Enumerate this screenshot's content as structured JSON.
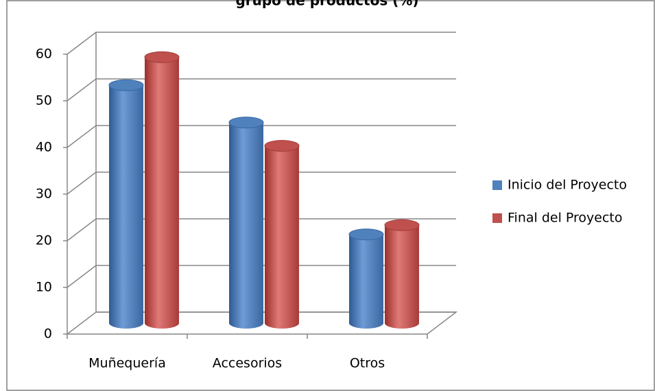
{
  "chart_data": {
    "type": "bar3d",
    "title": "grupo de productos (%)",
    "categories": [
      "Muñequería",
      "Accesorios",
      "Otros"
    ],
    "series": [
      {
        "name": "Inicio del Proyecto",
        "color": "#4f81bd",
        "values": [
          51,
          43,
          19
        ]
      },
      {
        "name": "Final del Proyecto",
        "color": "#c0504d",
        "values": [
          57,
          38,
          21
        ]
      }
    ],
    "ylim": [
      0,
      60
    ],
    "yticks": [
      0,
      10,
      20,
      30,
      40,
      50,
      60
    ],
    "grid": true,
    "legend": "right"
  }
}
